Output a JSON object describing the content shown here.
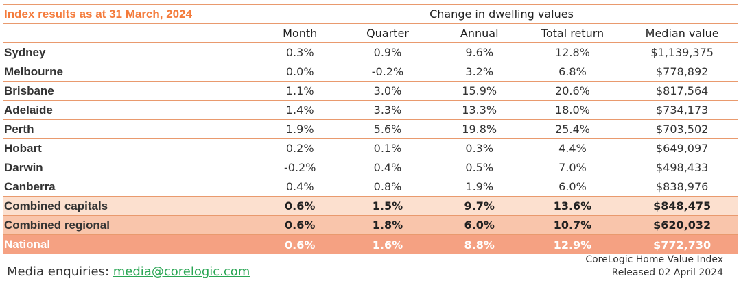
{
  "title": "Index results as at 31 March, 2024",
  "group_header": "Change in dwelling values",
  "columns": [
    "Month",
    "Quarter",
    "Annual",
    "Total return",
    "Median value"
  ],
  "rows": [
    {
      "region": "Sydney",
      "month": "0.3%",
      "quarter": "0.9%",
      "annual": "9.6%",
      "total_return": "12.8%",
      "median": "$1,139,375"
    },
    {
      "region": "Melbourne",
      "month": "0.0%",
      "quarter": "-0.2%",
      "annual": "3.2%",
      "total_return": "6.8%",
      "median": "$778,892"
    },
    {
      "region": "Brisbane",
      "month": "1.1%",
      "quarter": "3.0%",
      "annual": "15.9%",
      "total_return": "20.6%",
      "median": "$817,564"
    },
    {
      "region": "Adelaide",
      "month": "1.4%",
      "quarter": "3.3%",
      "annual": "13.3%",
      "total_return": "18.0%",
      "median": "$734,173"
    },
    {
      "region": "Perth",
      "month": "1.9%",
      "quarter": "5.6%",
      "annual": "19.8%",
      "total_return": "25.4%",
      "median": "$703,502"
    },
    {
      "region": "Hobart",
      "month": "0.2%",
      "quarter": "0.1%",
      "annual": "0.3%",
      "total_return": "4.4%",
      "median": "$649,097"
    },
    {
      "region": "Darwin",
      "month": "-0.2%",
      "quarter": "0.4%",
      "annual": "0.5%",
      "total_return": "7.0%",
      "median": "$498,433"
    },
    {
      "region": "Canberra",
      "month": "0.4%",
      "quarter": "0.8%",
      "annual": "1.9%",
      "total_return": "6.0%",
      "median": "$838,976"
    },
    {
      "region": "Combined capitals",
      "month": "0.6%",
      "quarter": "1.5%",
      "annual": "9.7%",
      "total_return": "13.6%",
      "median": "$848,475"
    },
    {
      "region": "Combined regional",
      "month": "0.6%",
      "quarter": "1.8%",
      "annual": "6.0%",
      "total_return": "10.7%",
      "median": "$620,032"
    },
    {
      "region": "National",
      "month": "0.6%",
      "quarter": "1.6%",
      "annual": "8.8%",
      "total_return": "12.9%",
      "median": "$772,730"
    }
  ],
  "footer": {
    "media_label": "Media enquiries:",
    "media_email": "media@corelogic.com",
    "source_line1": "CoreLogic Home Value Index",
    "source_line2": "Released 02 April 2024"
  },
  "colors": {
    "accent": "#f47b3b",
    "rule": "#e99a6e",
    "highlight_capitals": "#fce0cf",
    "highlight_regional": "#f9c5ab",
    "highlight_national": "#f5a182",
    "link": "#2aa654"
  }
}
